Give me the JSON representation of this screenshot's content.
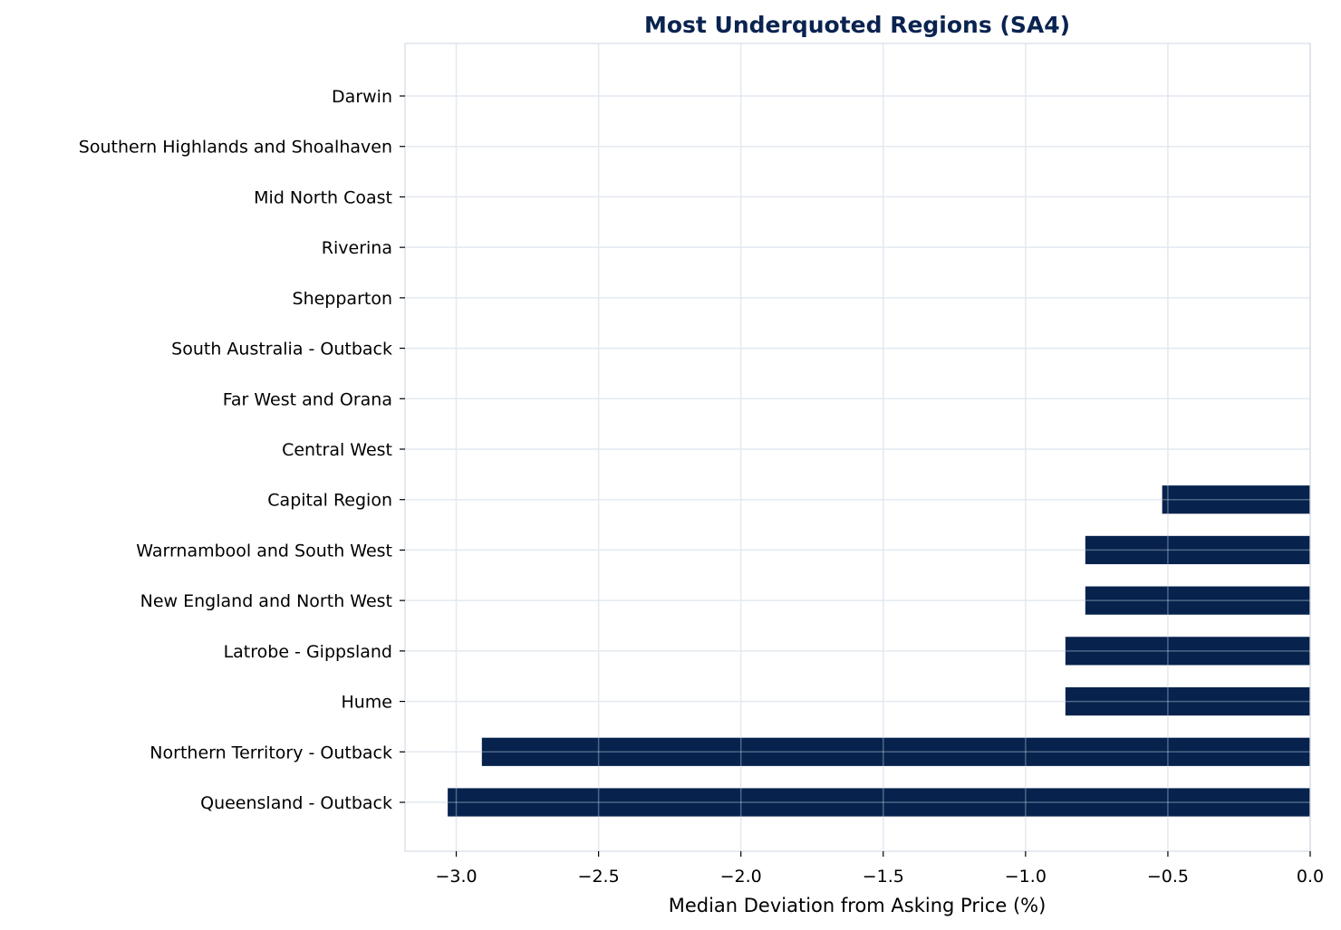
{
  "chart_data": {
    "type": "bar",
    "orientation": "horizontal",
    "title": "Most Underquoted Regions (SA4)",
    "xlabel": "Median Deviation from Asking Price (%)",
    "ylabel": "",
    "xlim": [
      -3.18,
      0.0
    ],
    "xticks": [
      -3.0,
      -2.5,
      -2.0,
      -1.5,
      -1.0,
      -0.5,
      0.0
    ],
    "xtick_labels": [
      "−3.0",
      "−2.5",
      "−2.0",
      "−1.5",
      "−1.0",
      "−0.5",
      "0.0"
    ],
    "grid": true,
    "categories": [
      "Darwin",
      "Southern Highlands and Shoalhaven",
      "Mid North Coast",
      "Riverina",
      "Shepparton",
      "South Australia - Outback",
      "Far West and Orana",
      "Central West",
      "Capital Region",
      "Warrnambool and South West",
      "New England and North West",
      "Latrobe - Gippsland",
      "Hume",
      "Northern Territory - Outback",
      "Queensland - Outback"
    ],
    "values": [
      0,
      0,
      0,
      0,
      0,
      0,
      0,
      0,
      -0.52,
      -0.79,
      -0.79,
      -0.86,
      -0.86,
      -2.91,
      -3.03
    ],
    "colors": {
      "bar": "#06224d",
      "title": "#0a2350",
      "grid": "#e8edf3",
      "spine": "#d5dce6"
    }
  }
}
